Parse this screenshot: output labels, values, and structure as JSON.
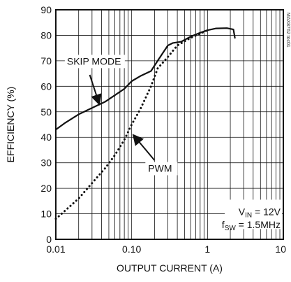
{
  "chart_data": {
    "type": "line",
    "title": "",
    "xlabel": "OUTPUT CURRENT (A)",
    "ylabel": "EFFICIENCY (%)",
    "xscale": "log",
    "xlim": [
      0.01,
      10
    ],
    "ylim": [
      0,
      90
    ],
    "grid": true,
    "x_tick_labels": [
      "0.01",
      "0.10",
      "1",
      "10"
    ],
    "y_tick_labels": [
      "0",
      "10",
      "20",
      "30",
      "40",
      "50",
      "60",
      "70",
      "80",
      "90"
    ],
    "series": [
      {
        "name": "SKIP MODE",
        "style": "solid",
        "x": [
          0.01,
          0.013,
          0.02,
          0.03,
          0.045,
          0.06,
          0.08,
          0.1,
          0.13,
          0.18,
          0.22,
          0.3,
          0.35,
          0.45,
          0.6,
          0.8,
          1.0,
          1.3,
          1.8,
          2.2,
          2.3
        ],
        "y": [
          43,
          45.5,
          49,
          51.5,
          54,
          56.5,
          59,
          62,
          64,
          66,
          70,
          76,
          77,
          77.5,
          79.5,
          81,
          82,
          82.7,
          82.8,
          82.3,
          79
        ]
      },
      {
        "name": "PWM",
        "style": "dotted",
        "x": [
          0.01,
          0.013,
          0.02,
          0.03,
          0.045,
          0.06,
          0.08,
          0.1,
          0.13,
          0.18,
          0.22,
          0.3,
          0.4,
          0.6,
          1.0
        ],
        "y": [
          8,
          11,
          16,
          22,
          28,
          33,
          39,
          45,
          51,
          60,
          67,
          71.5,
          76,
          79,
          82
        ]
      }
    ],
    "annotations": {
      "skip_label": "SKIP MODE",
      "pwm_label": "PWM",
      "vin_prefix": "V",
      "vin_sub": "IN",
      "vin_value": " = 12V",
      "fsw_prefix": "f",
      "fsw_sub": "SW",
      "fsw_value": " = 1.5MHz",
      "watermark": "MAX8762 toc01"
    },
    "colors": {
      "line": "#111111",
      "grid": "#111111",
      "background": "#ffffff"
    }
  }
}
